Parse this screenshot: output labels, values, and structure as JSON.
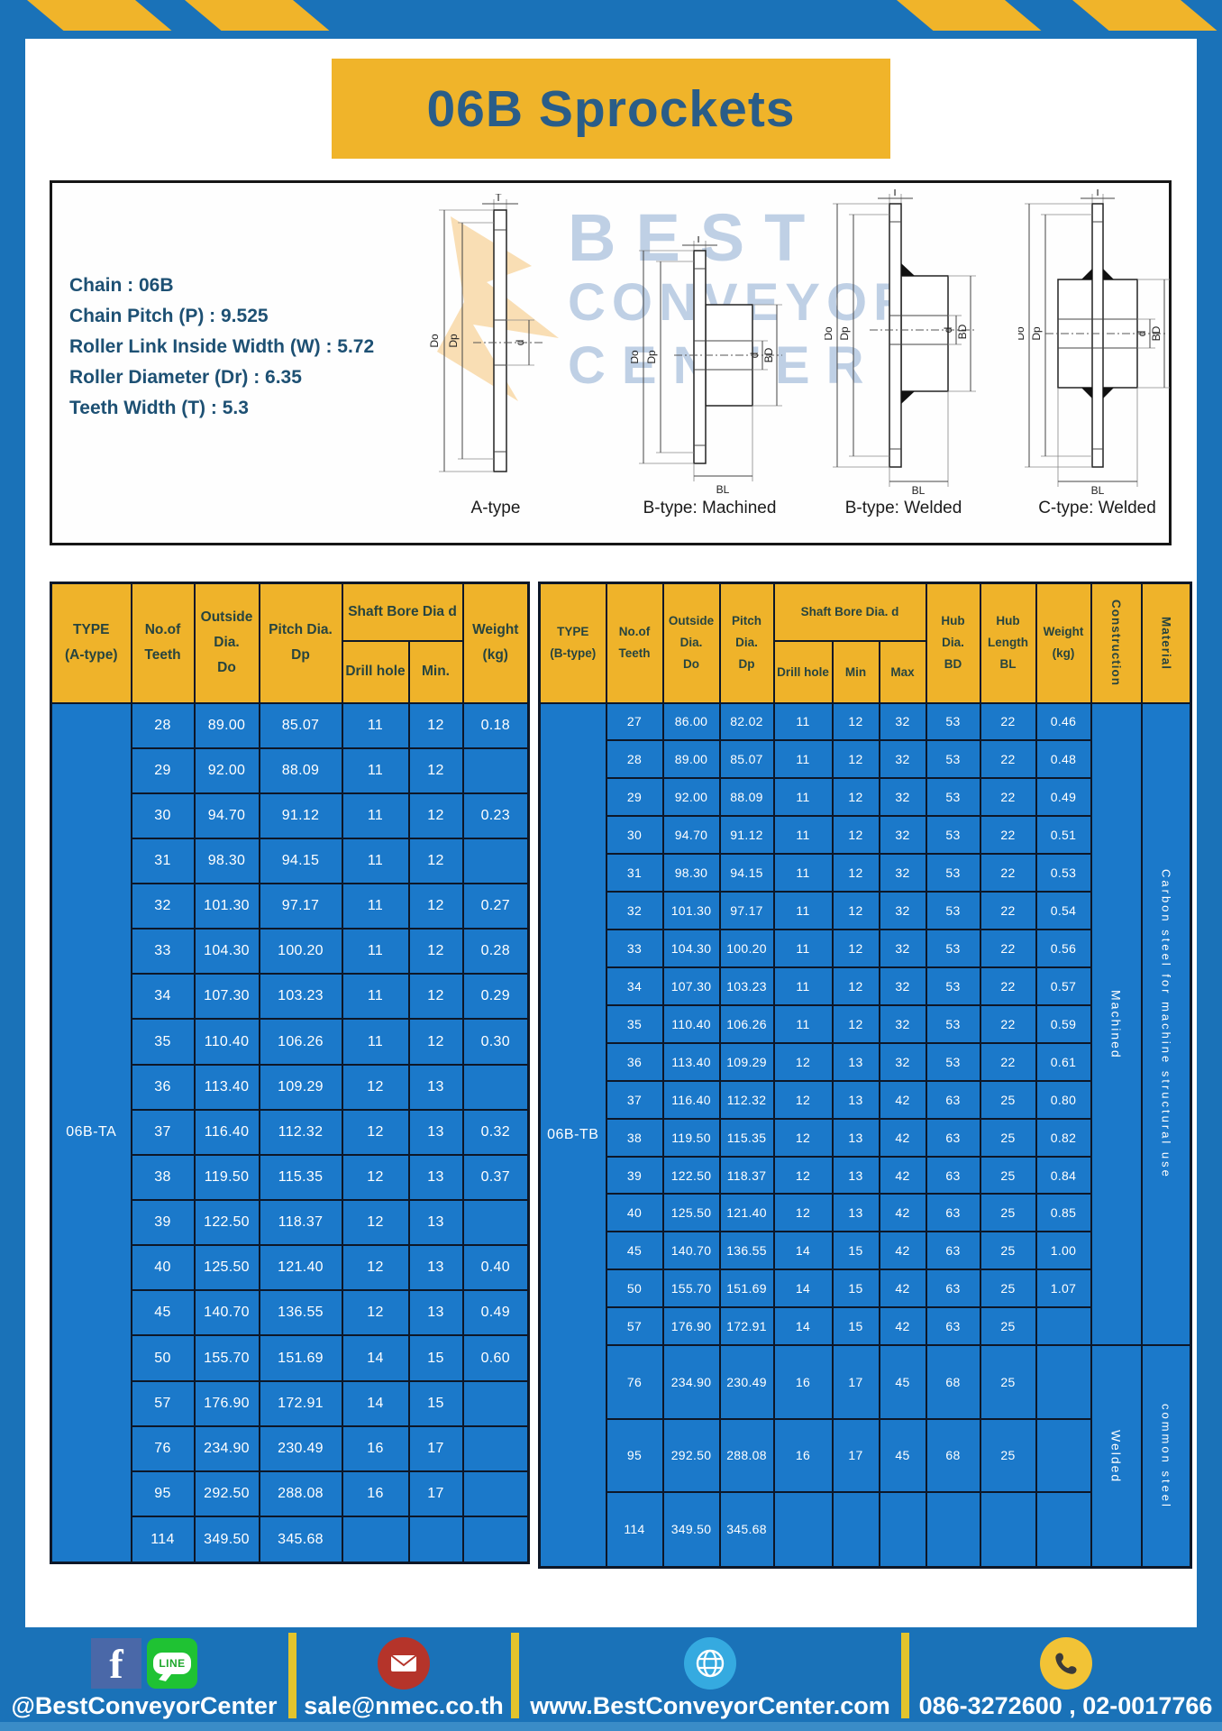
{
  "banner": {
    "title": "06B Sprockets"
  },
  "watermark": {
    "lines": [
      "BEST",
      "CONVEYOR",
      "CENTER"
    ]
  },
  "specs": {
    "lines": [
      "Chain : 06B",
      "Chain Pitch (P) : 9.525",
      "Roller Link Inside Width (W) : 5.72",
      "Roller Diameter (Dr) : 6.35",
      "Teeth Width (T) : 5.3"
    ]
  },
  "diagrams": {
    "captions": [
      "A-type",
      "B-type: Machined",
      "B-type: Welded",
      "C-type: Welded"
    ],
    "dims": {
      "T": "T",
      "Do": "Do",
      "Dp": "Dp",
      "d": "d",
      "BD": "BD",
      "BL": "BL"
    }
  },
  "table_a": {
    "header": {
      "type_lines": [
        "TYPE",
        "(A-type)"
      ],
      "teeth_lines": [
        "No.of",
        "Teeth"
      ],
      "outside_lines": [
        "Outside",
        "Dia.",
        "Do"
      ],
      "pitch_lines": [
        "Pitch Dia.",
        "Dp"
      ],
      "shaft_bore": "Shaft Bore Dia d",
      "drill_hole": "Drill hole",
      "min": "Min.",
      "weight_lines": [
        "Weight",
        "(kg)"
      ]
    },
    "type_label": "06B-TA",
    "rows": [
      [
        "28",
        "89.00",
        "85.07",
        "11",
        "12",
        "0.18"
      ],
      [
        "29",
        "92.00",
        "88.09",
        "11",
        "12",
        ""
      ],
      [
        "30",
        "94.70",
        "91.12",
        "11",
        "12",
        "0.23"
      ],
      [
        "31",
        "98.30",
        "94.15",
        "11",
        "12",
        ""
      ],
      [
        "32",
        "101.30",
        "97.17",
        "11",
        "12",
        "0.27"
      ],
      [
        "33",
        "104.30",
        "100.20",
        "11",
        "12",
        "0.28"
      ],
      [
        "34",
        "107.30",
        "103.23",
        "11",
        "12",
        "0.29"
      ],
      [
        "35",
        "110.40",
        "106.26",
        "11",
        "12",
        "0.30"
      ],
      [
        "36",
        "113.40",
        "109.29",
        "12",
        "13",
        ""
      ],
      [
        "37",
        "116.40",
        "112.32",
        "12",
        "13",
        "0.32"
      ],
      [
        "38",
        "119.50",
        "115.35",
        "12",
        "13",
        "0.37"
      ],
      [
        "39",
        "122.50",
        "118.37",
        "12",
        "13",
        ""
      ],
      [
        "40",
        "125.50",
        "121.40",
        "12",
        "13",
        "0.40"
      ],
      [
        "45",
        "140.70",
        "136.55",
        "12",
        "13",
        "0.49"
      ],
      [
        "50",
        "155.70",
        "151.69",
        "14",
        "15",
        "0.60"
      ],
      [
        "57",
        "176.90",
        "172.91",
        "14",
        "15",
        ""
      ],
      [
        "76",
        "234.90",
        "230.49",
        "16",
        "17",
        ""
      ],
      [
        "95",
        "292.50",
        "288.08",
        "16",
        "17",
        ""
      ],
      [
        "114",
        "349.50",
        "345.68",
        "",
        "",
        ""
      ]
    ]
  },
  "table_b": {
    "header": {
      "type_lines": [
        "TYPE",
        "(B-type)"
      ],
      "teeth_lines": [
        "No.of",
        "Teeth"
      ],
      "outside_lines": [
        "Outside",
        "Dia.",
        "Do"
      ],
      "pitch_lines": [
        "Pitch",
        "Dia.",
        "Dp"
      ],
      "shaft_bore": "Shaft Bore Dia. d",
      "drill_hole": "Drill hole",
      "min": "Min",
      "max": "Max",
      "hub_dia_lines": [
        "Hub",
        "Dia.",
        "BD"
      ],
      "hub_len_lines": [
        "Hub",
        "Length",
        "BL"
      ],
      "weight_lines": [
        "Weight",
        "(kg)"
      ],
      "construction": "Construction",
      "material": "Material"
    },
    "type_label": "06B-TB",
    "construction_groups": [
      {
        "label": "Machined",
        "rows": 17
      },
      {
        "label": "Welded",
        "rows": 3
      }
    ],
    "material_groups": [
      {
        "label": "Carbon steel for machine structural use",
        "rows": 17
      },
      {
        "label": "common steel",
        "rows": 3
      }
    ],
    "rows": [
      [
        "27",
        "86.00",
        "82.02",
        "11",
        "12",
        "32",
        "53",
        "22",
        "0.46"
      ],
      [
        "28",
        "89.00",
        "85.07",
        "11",
        "12",
        "32",
        "53",
        "22",
        "0.48"
      ],
      [
        "29",
        "92.00",
        "88.09",
        "11",
        "12",
        "32",
        "53",
        "22",
        "0.49"
      ],
      [
        "30",
        "94.70",
        "91.12",
        "11",
        "12",
        "32",
        "53",
        "22",
        "0.51"
      ],
      [
        "31",
        "98.30",
        "94.15",
        "11",
        "12",
        "32",
        "53",
        "22",
        "0.53"
      ],
      [
        "32",
        "101.30",
        "97.17",
        "11",
        "12",
        "32",
        "53",
        "22",
        "0.54"
      ],
      [
        "33",
        "104.30",
        "100.20",
        "11",
        "12",
        "32",
        "53",
        "22",
        "0.56"
      ],
      [
        "34",
        "107.30",
        "103.23",
        "11",
        "12",
        "32",
        "53",
        "22",
        "0.57"
      ],
      [
        "35",
        "110.40",
        "106.26",
        "11",
        "12",
        "32",
        "53",
        "22",
        "0.59"
      ],
      [
        "36",
        "113.40",
        "109.29",
        "12",
        "13",
        "32",
        "53",
        "22",
        "0.61"
      ],
      [
        "37",
        "116.40",
        "112.32",
        "12",
        "13",
        "42",
        "63",
        "25",
        "0.80"
      ],
      [
        "38",
        "119.50",
        "115.35",
        "12",
        "13",
        "42",
        "63",
        "25",
        "0.82"
      ],
      [
        "39",
        "122.50",
        "118.37",
        "12",
        "13",
        "42",
        "63",
        "25",
        "0.84"
      ],
      [
        "40",
        "125.50",
        "121.40",
        "12",
        "13",
        "42",
        "63",
        "25",
        "0.85"
      ],
      [
        "45",
        "140.70",
        "136.55",
        "14",
        "15",
        "42",
        "63",
        "25",
        "1.00"
      ],
      [
        "50",
        "155.70",
        "151.69",
        "14",
        "15",
        "42",
        "63",
        "25",
        "1.07"
      ],
      [
        "57",
        "176.90",
        "172.91",
        "14",
        "15",
        "42",
        "63",
        "25",
        ""
      ],
      [
        "76",
        "234.90",
        "230.49",
        "16",
        "17",
        "45",
        "68",
        "25",
        ""
      ],
      [
        "95",
        "292.50",
        "288.08",
        "16",
        "17",
        "45",
        "68",
        "25",
        ""
      ],
      [
        "114",
        "349.50",
        "345.68",
        "",
        "",
        "",
        "",
        "",
        ""
      ]
    ]
  },
  "footer": {
    "facebook_glyph": "f",
    "line_text": "LINE",
    "social_label": "@BestConveyorCenter",
    "email": "sale@nmec.co.th",
    "website": "www.BestConveyorCenter.com",
    "phone": "086-3272600 , 02-0017766"
  },
  "colors": {
    "brand_blue": "#1a72b8",
    "cell_blue": "#1b79ca",
    "brand_yellow": "#f0b42a"
  }
}
